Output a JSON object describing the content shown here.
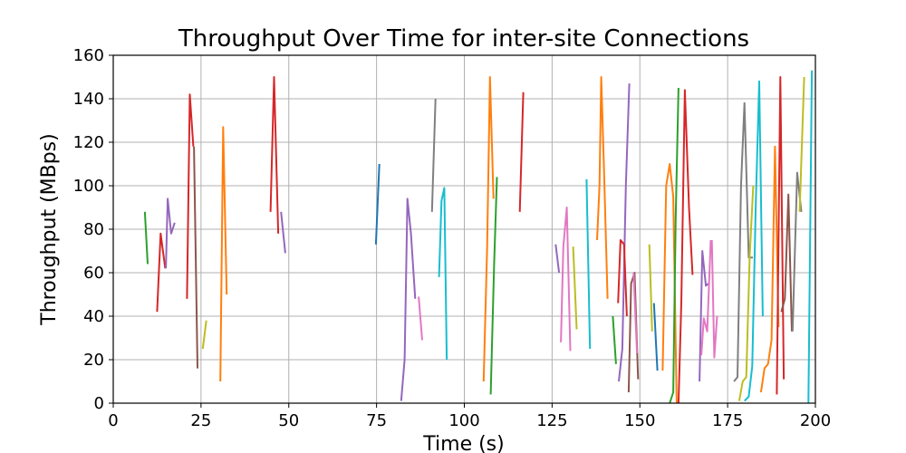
{
  "chart_data": {
    "type": "line",
    "title": "Throughput Over Time for inter-site Connections",
    "xlabel": "Time (s)",
    "ylabel": "Throughput (MBps)",
    "xlim": [
      0,
      200
    ],
    "ylim": [
      0,
      160
    ],
    "xticks": [
      "0",
      "25",
      "50",
      "75",
      "100",
      "125",
      "150",
      "175",
      "200"
    ],
    "yticks": [
      "0",
      "20",
      "40",
      "60",
      "80",
      "100",
      "120",
      "140",
      "160"
    ],
    "grid": true,
    "legend": "none",
    "series": [
      {
        "color": "#2ca02c",
        "x": [
          9,
          9.8
        ],
        "y": [
          88,
          64
        ]
      },
      {
        "color": "#d62728",
        "x": [
          12.5,
          13.5,
          14.8
        ],
        "y": [
          42,
          78,
          62
        ]
      },
      {
        "color": "#9467bd",
        "x": [
          15,
          15.5,
          16.5,
          17.5
        ],
        "y": [
          62,
          94,
          78,
          83
        ]
      },
      {
        "color": "#d62728",
        "x": [
          21,
          21.8,
          22.8
        ],
        "y": [
          48,
          142,
          118
        ]
      },
      {
        "color": "#8c564b",
        "x": [
          23,
          24
        ],
        "y": [
          118,
          16
        ]
      },
      {
        "color": "#bcbd22",
        "x": [
          25.5,
          26.5
        ],
        "y": [
          25,
          38
        ]
      },
      {
        "color": "#ff7f0e",
        "x": [
          30.5,
          31.3,
          32.3
        ],
        "y": [
          10,
          127,
          50
        ]
      },
      {
        "color": "#d62728",
        "x": [
          44.8,
          45.8,
          47
        ],
        "y": [
          88,
          150,
          78
        ]
      },
      {
        "color": "#9467bd",
        "x": [
          47.8,
          49
        ],
        "y": [
          88,
          69
        ]
      },
      {
        "color": "#1f77b4",
        "x": [
          74.8,
          75.8
        ],
        "y": [
          73,
          110
        ]
      },
      {
        "color": "#9467bd",
        "x": [
          82,
          83,
          83.8,
          84.8,
          86
        ],
        "y": [
          1,
          20,
          94,
          78,
          48
        ]
      },
      {
        "color": "#e377c2",
        "x": [
          87,
          88
        ],
        "y": [
          49,
          29
        ]
      },
      {
        "color": "#7f7f7f",
        "x": [
          90.8,
          91.8
        ],
        "y": [
          88,
          140
        ]
      },
      {
        "color": "#17becf",
        "x": [
          92.8,
          93.5,
          94.3,
          95
        ],
        "y": [
          58,
          93,
          99,
          20
        ]
      },
      {
        "color": "#ff7f0e",
        "x": [
          105.5,
          106.5,
          107.3,
          108.3
        ],
        "y": [
          10,
          72,
          150,
          94
        ]
      },
      {
        "color": "#2ca02c",
        "x": [
          107.5,
          108.5,
          109.3
        ],
        "y": [
          4,
          64,
          104
        ]
      },
      {
        "color": "#d62728",
        "x": [
          115.8,
          116.8
        ],
        "y": [
          88,
          143
        ]
      },
      {
        "color": "#9467bd",
        "x": [
          126,
          127
        ],
        "y": [
          73,
          60
        ]
      },
      {
        "color": "#e377c2",
        "x": [
          127.5,
          128.2,
          129.2,
          130.2
        ],
        "y": [
          28,
          72,
          90,
          24
        ]
      },
      {
        "color": "#bcbd22",
        "x": [
          131,
          132
        ],
        "y": [
          72,
          34
        ]
      },
      {
        "color": "#17becf",
        "x": [
          134.8,
          135.8
        ],
        "y": [
          103,
          25
        ]
      },
      {
        "color": "#ff7f0e",
        "x": [
          137.8,
          138.5,
          139,
          139.8,
          140.8
        ],
        "y": [
          75,
          100,
          150,
          107,
          48
        ]
      },
      {
        "color": "#2ca02c",
        "x": [
          142.3,
          143.2
        ],
        "y": [
          40,
          18
        ]
      },
      {
        "color": "#9467bd",
        "x": [
          144,
          145,
          146,
          147
        ],
        "y": [
          10,
          25,
          100,
          147
        ]
      },
      {
        "color": "#d62728",
        "x": [
          143.8,
          144.5,
          145.5,
          146.3
        ],
        "y": [
          46,
          75,
          73,
          40
        ]
      },
      {
        "color": "#8c564b",
        "x": [
          146.8,
          147.5,
          148.5,
          149.5
        ],
        "y": [
          5,
          55,
          60,
          11
        ]
      },
      {
        "color": "#e377c2",
        "x": [
          148.2,
          149.2
        ],
        "y": [
          60,
          23
        ]
      },
      {
        "color": "#bcbd22",
        "x": [
          152.7,
          153.5
        ],
        "y": [
          73,
          33
        ]
      },
      {
        "color": "#1f77b4",
        "x": [
          154,
          155
        ],
        "y": [
          46,
          15
        ]
      },
      {
        "color": "#ff7f0e",
        "x": [
          156.5,
          157.5,
          158.5,
          159.5,
          160.5
        ],
        "y": [
          15,
          100,
          110,
          95,
          0
        ]
      },
      {
        "color": "#2ca02c",
        "x": [
          158.5,
          159.5,
          160.2,
          161
        ],
        "y": [
          0,
          5,
          85,
          145
        ]
      },
      {
        "color": "#d62728",
        "x": [
          161,
          161.8,
          162.8,
          164,
          165
        ],
        "y": [
          0,
          46,
          144,
          90,
          59
        ]
      },
      {
        "color": "#9467bd",
        "x": [
          167,
          167.8,
          168.8,
          169.5
        ],
        "y": [
          10,
          70,
          54,
          55
        ]
      },
      {
        "color": "#e377c2",
        "x": [
          167.5,
          168.2,
          169.2,
          170.2
        ],
        "y": [
          22,
          39,
          33,
          75
        ]
      },
      {
        "color": "#e377c2",
        "x": [
          170.5,
          171.2,
          172
        ],
        "y": [
          75,
          21,
          40
        ]
      },
      {
        "color": "#7f7f7f",
        "x": [
          176.8,
          177.8,
          178.8,
          179.8,
          181,
          182.2
        ],
        "y": [
          10,
          12,
          100,
          138,
          67,
          67
        ]
      },
      {
        "color": "#bcbd22",
        "x": [
          178.3,
          179.3,
          180.3,
          181.3,
          182.3
        ],
        "y": [
          1,
          10,
          12,
          68,
          100
        ]
      },
      {
        "color": "#17becf",
        "x": [
          179.8,
          181,
          182,
          183,
          184,
          185
        ],
        "y": [
          1,
          3,
          17,
          90,
          148,
          40
        ]
      },
      {
        "color": "#ff7f0e",
        "x": [
          184.5,
          185.5,
          186.5,
          187.5,
          188.5,
          189.5
        ],
        "y": [
          5,
          16,
          18,
          29,
          118,
          35
        ]
      },
      {
        "color": "#d62728",
        "x": [
          189,
          190,
          191
        ],
        "y": [
          4,
          150,
          11
        ]
      },
      {
        "color": "#8c564b",
        "x": [
          190.3,
          191.3,
          192.3,
          193.3
        ],
        "y": [
          42,
          48,
          96,
          33
        ]
      },
      {
        "color": "#7f7f7f",
        "x": [
          193.5,
          194.8,
          196
        ],
        "y": [
          33,
          106,
          88
        ]
      },
      {
        "color": "#bcbd22",
        "x": [
          195.5,
          196.8
        ],
        "y": [
          88,
          150
        ]
      },
      {
        "color": "#17becf",
        "x": [
          198,
          199
        ],
        "y": [
          0,
          153
        ]
      }
    ]
  }
}
